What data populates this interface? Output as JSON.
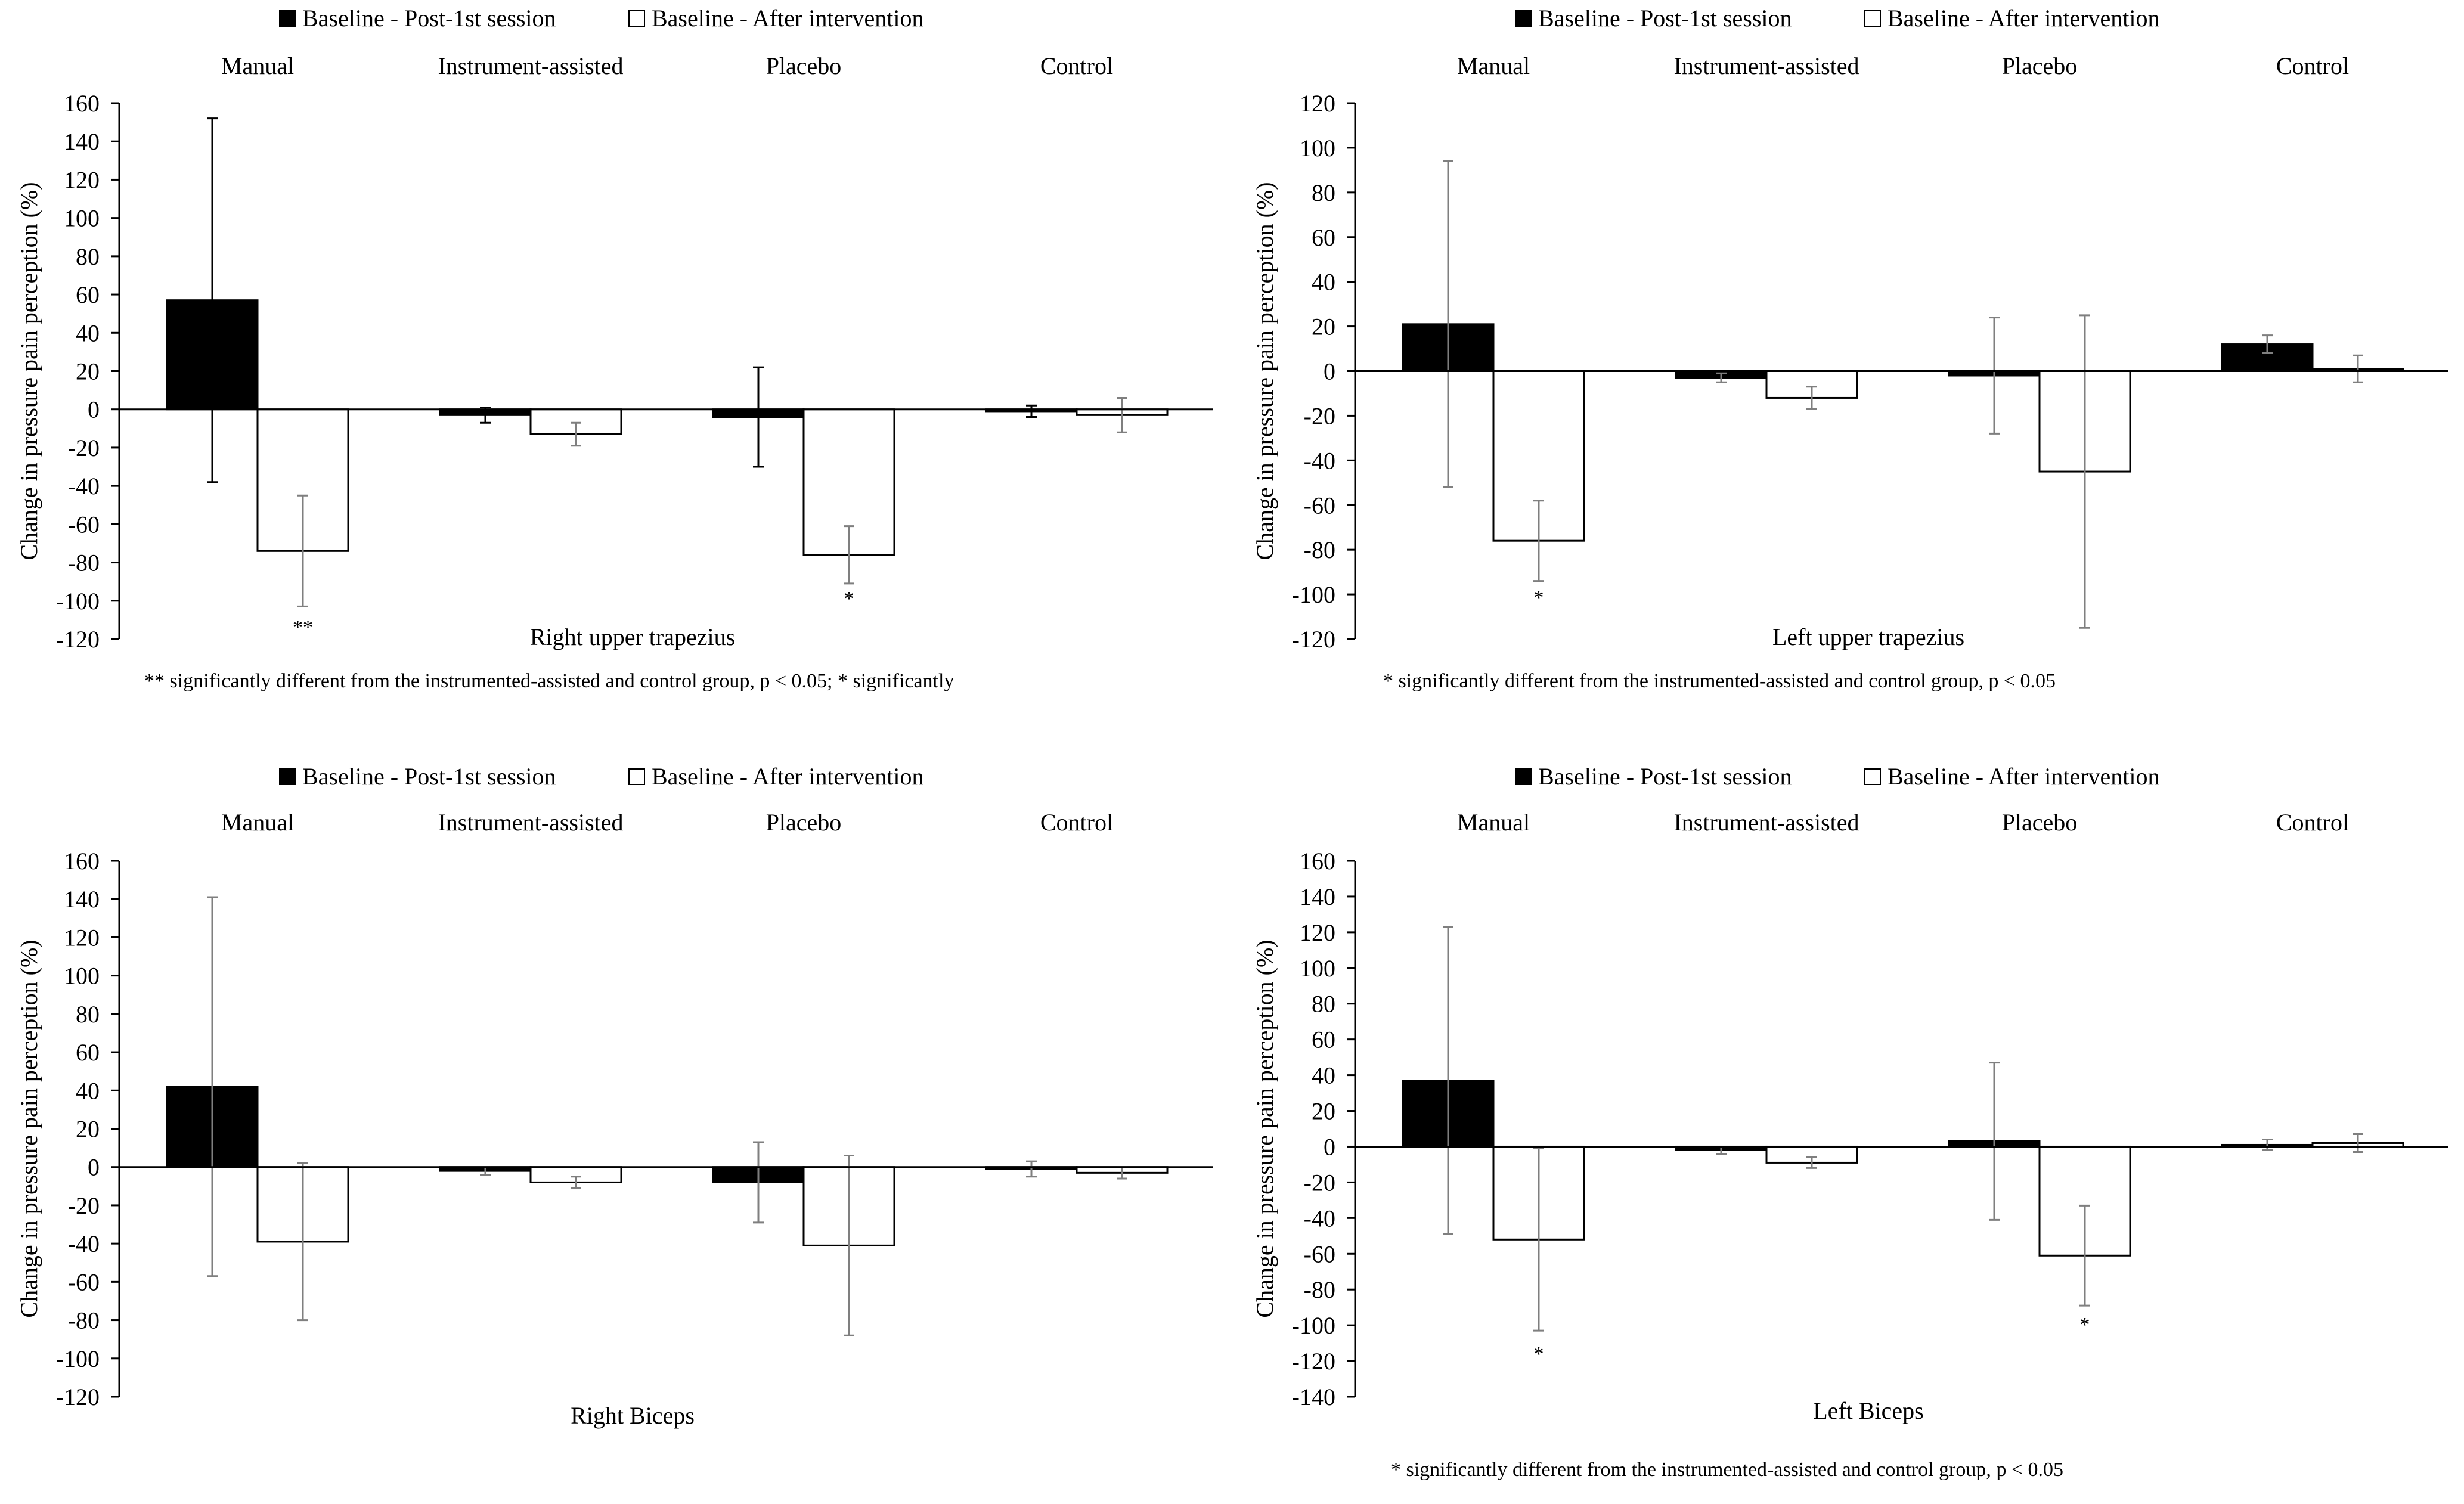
{
  "colors": {
    "post_first_session": "#000000",
    "after_intervention": "#ffffff",
    "error_bar_dark": "#000000",
    "error_bar_grey": "#7f7f7f",
    "axis": "#000000"
  },
  "chart_data": [
    {
      "type": "bar",
      "title": "Right upper trapezius",
      "ylabel": "Change in pressure pain perception (%)",
      "xlabel": "Right upper trapezius",
      "ylim": [
        -120,
        160
      ],
      "yticks": [
        "160",
        "140",
        "120",
        "100",
        "80",
        "60",
        "40",
        "20",
        "0",
        "-20",
        "-40",
        "-60",
        "-80",
        "-100",
        "-120"
      ],
      "ytick_values": [
        160,
        140,
        120,
        100,
        80,
        60,
        40,
        20,
        0,
        -20,
        -40,
        -60,
        -80,
        -100,
        -120
      ],
      "categories": [
        "Manual",
        "Instrument-assisted",
        "Placebo",
        "Control"
      ],
      "legend": [
        "Baseline - Post-1st session",
        "Baseline - After intervention"
      ],
      "series": [
        {
          "name": "Baseline - Post-1st session",
          "values": [
            57,
            -3,
            -4,
            -1
          ],
          "errors": [
            95,
            4,
            26,
            3
          ]
        },
        {
          "name": "Baseline - After intervention",
          "values": [
            -74,
            -13,
            -76,
            -3
          ],
          "errors": [
            29,
            6,
            15,
            9
          ]
        }
      ],
      "significance": [
        "**",
        "",
        "*",
        ""
      ],
      "footnote": "** significantly different from the instrumented-assisted and control group, p < 0.05; * significantly"
    },
    {
      "type": "bar",
      "title": "Left upper trapezius",
      "ylabel": "Change in pressure pain perception (%)",
      "xlabel": "Left upper trapezius",
      "ylim": [
        -120,
        120
      ],
      "yticks": [
        "120",
        "100",
        "80",
        "60",
        "40",
        "20",
        "0",
        "-20",
        "-40",
        "-60",
        "-80",
        "-100",
        "-120"
      ],
      "ytick_values": [
        120,
        100,
        80,
        60,
        40,
        20,
        0,
        -20,
        -40,
        -60,
        -80,
        -100,
        -120
      ],
      "categories": [
        "Manual",
        "Instrument-assisted",
        "Placebo",
        "Control"
      ],
      "legend": [
        "Baseline - Post-1st session",
        "Baseline - After intervention"
      ],
      "series": [
        {
          "name": "Baseline - Post-1st session",
          "values": [
            21,
            -3,
            -2,
            12
          ],
          "errors": [
            73,
            2,
            26,
            4
          ]
        },
        {
          "name": "Baseline - After intervention",
          "values": [
            -76,
            -12,
            -45,
            1
          ],
          "errors": [
            18,
            5,
            70,
            6
          ]
        }
      ],
      "significance": [
        "*",
        "",
        "",
        ""
      ],
      "footnote": "* significantly different from the instrumented-assisted and control group, p < 0.05"
    },
    {
      "type": "bar",
      "title": "Right Biceps",
      "ylabel": "Change in pressure pain perception (%)",
      "xlabel": "Right Biceps",
      "ylim": [
        -120,
        160
      ],
      "yticks": [
        "160",
        "140",
        "120",
        "100",
        "80",
        "60",
        "40",
        "20",
        "0",
        "-20",
        "-40",
        "-60",
        "-80",
        "-100",
        "-120"
      ],
      "ytick_values": [
        160,
        140,
        120,
        100,
        80,
        60,
        40,
        20,
        0,
        -20,
        -40,
        -60,
        -80,
        -100,
        -120
      ],
      "categories": [
        "Manual",
        "Instrument-assisted",
        "Placebo",
        "Control"
      ],
      "legend": [
        "Baseline - Post-1st session",
        "Baseline - After intervention"
      ],
      "series": [
        {
          "name": "Baseline - Post-1st session",
          "values": [
            42,
            -2,
            -8,
            -1
          ],
          "errors": [
            99,
            2,
            21,
            4
          ]
        },
        {
          "name": "Baseline - After intervention",
          "values": [
            -39,
            -8,
            -41,
            -3
          ],
          "errors": [
            41,
            3,
            47,
            3
          ]
        }
      ],
      "significance": [
        "",
        "",
        "",
        ""
      ],
      "footnote": ""
    },
    {
      "type": "bar",
      "title": "Left Biceps",
      "ylabel": "Change in pressure pain perception (%)",
      "xlabel": "Left Biceps",
      "ylim": [
        -140,
        160
      ],
      "yticks": [
        "160",
        "140",
        "120",
        "100",
        "80",
        "60",
        "40",
        "20",
        "0",
        "-20",
        "-40",
        "-60",
        "-80",
        "-100",
        "-120",
        "-140"
      ],
      "ytick_values": [
        160,
        140,
        120,
        100,
        80,
        60,
        40,
        20,
        0,
        -20,
        -40,
        -60,
        -80,
        -100,
        -120,
        -140
      ],
      "categories": [
        "Manual",
        "Instrument-assisted",
        "Placebo",
        "Control"
      ],
      "legend": [
        "Baseline - Post-1st session",
        "Baseline - After intervention"
      ],
      "series": [
        {
          "name": "Baseline - Post-1st session",
          "values": [
            37,
            -2,
            3,
            1
          ],
          "errors": [
            86,
            2,
            44,
            3
          ]
        },
        {
          "name": "Baseline - After intervention",
          "values": [
            -52,
            -9,
            -61,
            2
          ],
          "errors": [
            51,
            3,
            28,
            5
          ]
        }
      ],
      "significance": [
        "*",
        "",
        "*",
        ""
      ],
      "footnote": "* significantly different from the instrumented-assisted and control group, p < 0.05"
    }
  ]
}
